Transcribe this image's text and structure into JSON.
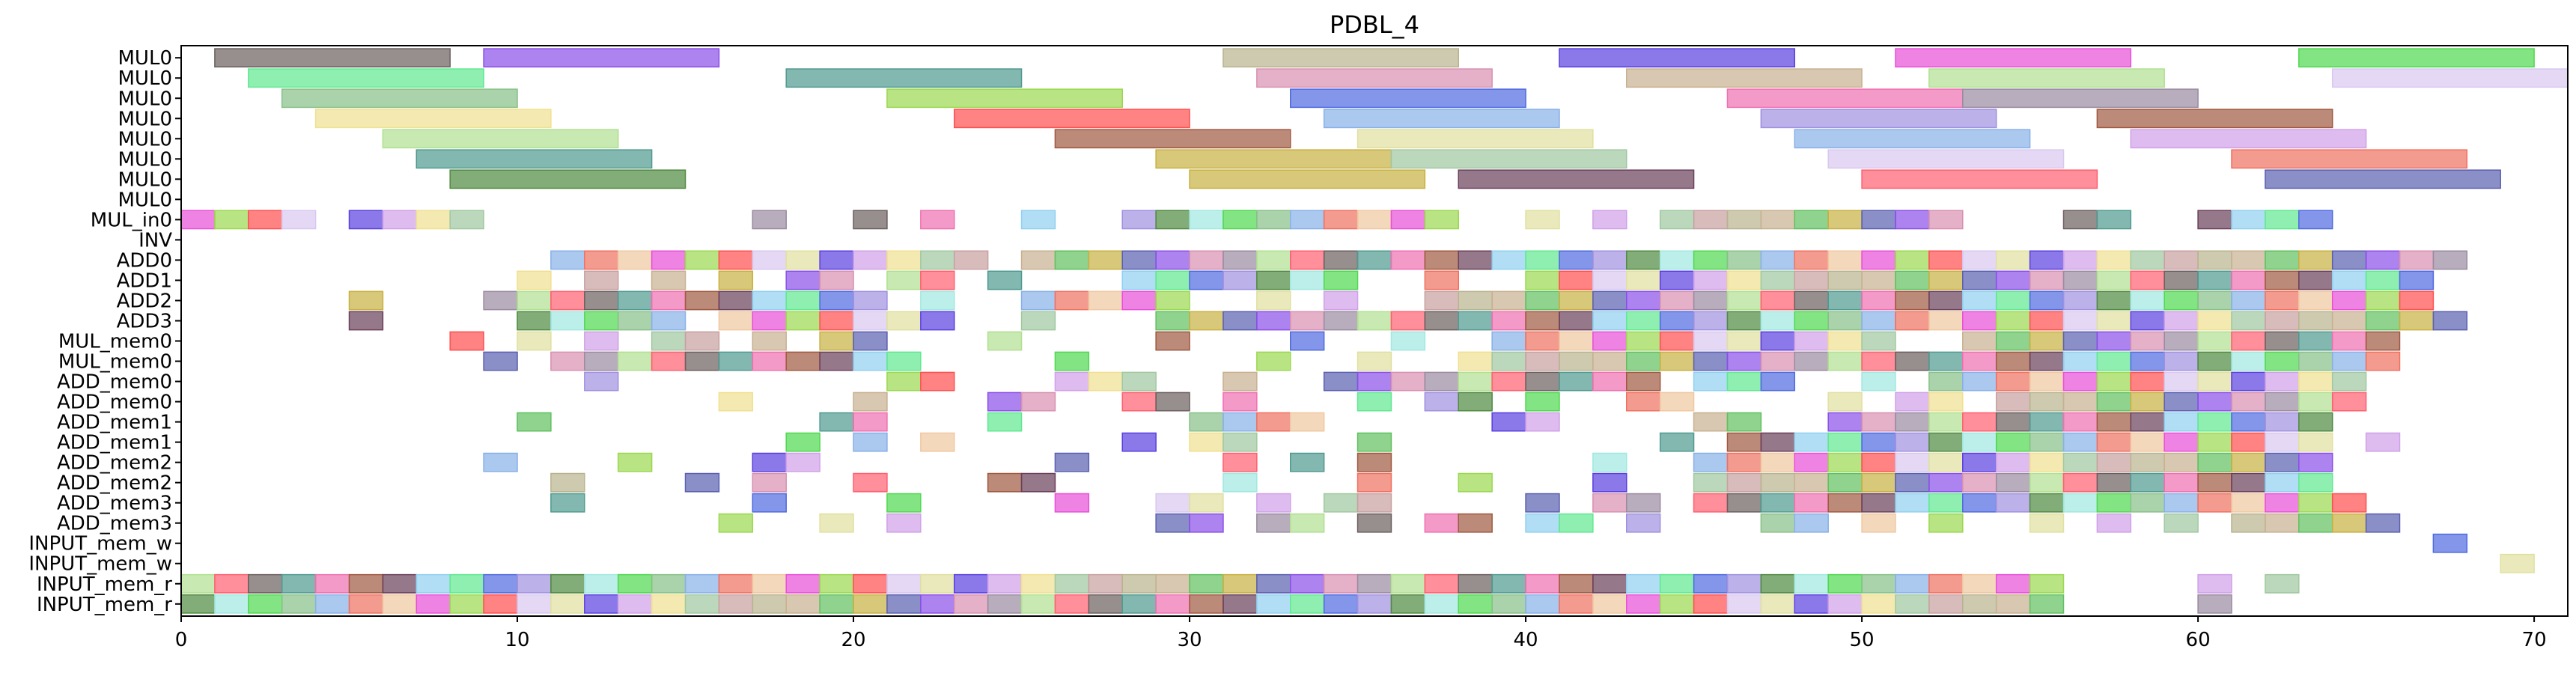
{
  "chart_data": {
    "type": "gantt",
    "title": "PDBL_4",
    "xlabel": "",
    "ylabel": "",
    "xlim": [
      0,
      71
    ],
    "x_ticks": [
      0,
      10,
      20,
      30,
      40,
      50,
      60,
      70
    ],
    "grid": false,
    "legend": "none",
    "rows": [
      "MUL0",
      "MUL0",
      "MUL0",
      "MUL0",
      "MUL0",
      "MUL0",
      "MUL0",
      "MUL0",
      "MUL_in0",
      "INV",
      "ADD0",
      "ADD1",
      "ADD2",
      "ADD3",
      "MUL_mem0",
      "MUL_mem0",
      "ADD_mem0",
      "ADD_mem0",
      "ADD_mem1",
      "ADD_mem1",
      "ADD_mem2",
      "ADD_mem2",
      "ADD_mem3",
      "ADD_mem3",
      "INPUT_mem_w",
      "INPUT_mem_w",
      "INPUT_mem_r",
      "INPUT_mem_r"
    ],
    "palette": [
      "#6b5e5e",
      "#8a4fe8",
      "#b8b38e",
      "#5a3fe0",
      "#e84fd8",
      "#4fd84f",
      "#5fe890",
      "#4f9a90",
      "#d890b0",
      "#c8b090",
      "#d0a0e8",
      "#9ad84f",
      "#88c088",
      "#4f6ae0",
      "#f06fb0",
      "#9a8aa0",
      "#5fc05f",
      "#f0e090",
      "#ff4f4f",
      "#88b0e8",
      "#a090e0",
      "#a0583f",
      "#b0e090",
      "#c8b040",
      "#a0c8a0",
      "#d8c8f0",
      "#f07060",
      "#4f8a3f",
      "#6a3f5a",
      "#ff5f6f",
      "#5a5fb0",
      "#c8a0a0",
      "#e0e0a0",
      "#f0c8a0",
      "#a0e8e0",
      "#90d0f0"
    ],
    "bars": [
      {
        "row": 0,
        "start": 1,
        "end": 8,
        "c": 0
      },
      {
        "row": 0,
        "start": 9,
        "end": 16,
        "c": 1
      },
      {
        "row": 0,
        "start": 31,
        "end": 38,
        "c": 2
      },
      {
        "row": 0,
        "start": 41,
        "end": 48,
        "c": 3
      },
      {
        "row": 0,
        "start": 51,
        "end": 58,
        "c": 4
      },
      {
        "row": 0,
        "start": 63,
        "end": 70,
        "c": 5
      },
      {
        "row": 1,
        "start": 2,
        "end": 9,
        "c": 6
      },
      {
        "row": 1,
        "start": 18,
        "end": 25,
        "c": 7
      },
      {
        "row": 1,
        "start": 32,
        "end": 39,
        "c": 8
      },
      {
        "row": 1,
        "start": 43,
        "end": 50,
        "c": 9
      },
      {
        "row": 1,
        "start": 52,
        "end": 59,
        "c": 22
      },
      {
        "row": 1,
        "start": 64,
        "end": 71,
        "c": 25
      },
      {
        "row": 2,
        "start": 3,
        "end": 10,
        "c": 12
      },
      {
        "row": 2,
        "start": 21,
        "end": 28,
        "c": 11
      },
      {
        "row": 2,
        "start": 33,
        "end": 40,
        "c": 13
      },
      {
        "row": 2,
        "start": 46,
        "end": 53,
        "c": 14
      },
      {
        "row": 2,
        "start": 53,
        "end": 60,
        "c": 15
      },
      {
        "row": 3,
        "start": 4,
        "end": 11,
        "c": 17
      },
      {
        "row": 3,
        "start": 23,
        "end": 30,
        "c": 18
      },
      {
        "row": 3,
        "start": 34,
        "end": 41,
        "c": 19
      },
      {
        "row": 3,
        "start": 47,
        "end": 54,
        "c": 20
      },
      {
        "row": 3,
        "start": 57,
        "end": 64,
        "c": 21
      },
      {
        "row": 4,
        "start": 6,
        "end": 13,
        "c": 22
      },
      {
        "row": 4,
        "start": 26,
        "end": 33,
        "c": 21
      },
      {
        "row": 4,
        "start": 35,
        "end": 42,
        "c": 32
      },
      {
        "row": 4,
        "start": 48,
        "end": 55,
        "c": 19
      },
      {
        "row": 4,
        "start": 58,
        "end": 65,
        "c": 10
      },
      {
        "row": 5,
        "start": 7,
        "end": 14,
        "c": 7
      },
      {
        "row": 5,
        "start": 29,
        "end": 36,
        "c": 23
      },
      {
        "row": 5,
        "start": 36,
        "end": 43,
        "c": 24
      },
      {
        "row": 5,
        "start": 49,
        "end": 56,
        "c": 25
      },
      {
        "row": 5,
        "start": 61,
        "end": 68,
        "c": 26
      },
      {
        "row": 6,
        "start": 8,
        "end": 15,
        "c": 27
      },
      {
        "row": 6,
        "start": 30,
        "end": 37,
        "c": 23
      },
      {
        "row": 6,
        "start": 38,
        "end": 45,
        "c": 28
      },
      {
        "row": 6,
        "start": 50,
        "end": 57,
        "c": 29
      },
      {
        "row": 6,
        "start": 62,
        "end": 69,
        "c": 30
      }
    ],
    "cells": {
      "8": [
        0,
        1,
        2,
        3,
        5,
        6,
        7,
        8,
        17,
        20,
        22,
        25,
        28,
        29,
        30,
        31,
        32,
        33,
        34,
        35,
        36,
        37,
        40,
        42,
        44,
        45,
        46,
        47,
        48,
        49,
        50,
        51,
        52,
        56,
        57,
        60,
        61,
        62,
        63
      ],
      "10": [
        11,
        12,
        13,
        14,
        15,
        16,
        17,
        18,
        19,
        20,
        21,
        22,
        23,
        25,
        26,
        27,
        28,
        29,
        30,
        31,
        32,
        33,
        34,
        35,
        36,
        37,
        38,
        39,
        40,
        41,
        42,
        43,
        44,
        45,
        46,
        47,
        48,
        49,
        50,
        51,
        52,
        53,
        54,
        55,
        56,
        57,
        58,
        59,
        60,
        61,
        62,
        63,
        64,
        65,
        66,
        67
      ],
      "11": [
        10,
        12,
        14,
        16,
        18,
        19,
        21,
        22,
        24,
        28,
        29,
        30,
        31,
        32,
        33,
        34,
        37,
        40,
        41,
        42,
        43,
        44,
        45,
        46,
        47,
        48,
        49,
        50,
        51,
        52,
        53,
        54,
        55,
        56,
        57,
        58,
        59,
        60,
        61,
        62,
        63,
        64,
        65,
        66
      ],
      "12": [
        5,
        9,
        10,
        11,
        12,
        13,
        14,
        15,
        16,
        17,
        18,
        19,
        20,
        22,
        25,
        26,
        27,
        28,
        29,
        32,
        34,
        37,
        38,
        39,
        40,
        41,
        42,
        43,
        44,
        45,
        46,
        47,
        48,
        49,
        50,
        51,
        52,
        53,
        54,
        55,
        56,
        57,
        58,
        59,
        60,
        61,
        62,
        63,
        64,
        65,
        66
      ],
      "13": [
        5,
        10,
        11,
        12,
        13,
        14,
        16,
        17,
        18,
        19,
        20,
        21,
        22,
        25,
        29,
        30,
        31,
        32,
        33,
        34,
        35,
        36,
        37,
        38,
        39,
        40,
        41,
        42,
        43,
        44,
        45,
        46,
        47,
        48,
        49,
        50,
        51,
        52,
        53,
        54,
        55,
        56,
        57,
        58,
        59,
        60,
        61,
        62,
        63,
        64,
        65,
        66,
        67
      ],
      "14": [
        8,
        10,
        12,
        14,
        15,
        17,
        19,
        20,
        24,
        29,
        33,
        36,
        39,
        40,
        41,
        42,
        43,
        44,
        45,
        46,
        47,
        48,
        49,
        50,
        53,
        54,
        55,
        56,
        57,
        58,
        59,
        60,
        61,
        62,
        63,
        64,
        65
      ],
      "15": [
        9,
        11,
        12,
        13,
        14,
        15,
        16,
        17,
        18,
        19,
        20,
        21,
        26,
        32,
        35,
        38,
        39,
        40,
        41,
        42,
        43,
        44,
        45,
        46,
        47,
        48,
        49,
        50,
        51,
        52,
        53,
        54,
        55,
        56,
        57,
        58,
        59,
        60,
        61,
        62,
        63,
        64,
        65
      ],
      "16": [
        12,
        21,
        22,
        26,
        27,
        28,
        31,
        34,
        35,
        36,
        37,
        38,
        39,
        40,
        41,
        42,
        43,
        45,
        46,
        47,
        50,
        52,
        53,
        54,
        55,
        56,
        57,
        58,
        59,
        60,
        61,
        62,
        63,
        64
      ],
      "17": [
        16,
        20,
        24,
        25,
        28,
        29,
        31,
        35,
        37,
        38,
        40,
        43,
        44,
        49,
        51,
        52,
        54,
        55,
        56,
        57,
        58,
        59,
        60,
        61,
        62,
        63,
        64
      ],
      "18": [
        10,
        19,
        20,
        24,
        30,
        31,
        32,
        33,
        39,
        40,
        45,
        46,
        49,
        50,
        51,
        52,
        53,
        54,
        55,
        56,
        57,
        58,
        59,
        60,
        61,
        62,
        63
      ],
      "19": [
        18,
        20,
        22,
        28,
        30,
        31,
        35,
        44,
        46,
        47,
        48,
        49,
        50,
        51,
        52,
        53,
        54,
        55,
        56,
        57,
        58,
        59,
        60,
        61,
        62,
        63,
        65
      ],
      "20": [
        9,
        13,
        17,
        18,
        26,
        31,
        33,
        35,
        42,
        45,
        46,
        47,
        48,
        49,
        50,
        51,
        52,
        53,
        54,
        55,
        56,
        57,
        58,
        59,
        60,
        61,
        62,
        63
      ],
      "21": [
        11,
        15,
        17,
        20,
        24,
        25,
        31,
        35,
        38,
        42,
        45,
        46,
        47,
        48,
        49,
        50,
        51,
        52,
        53,
        54,
        55,
        56,
        57,
        58,
        59,
        60,
        61,
        62,
        63
      ],
      "22": [
        11,
        17,
        21,
        26,
        29,
        30,
        32,
        34,
        35,
        40,
        42,
        43,
        45,
        46,
        47,
        48,
        49,
        50,
        51,
        52,
        53,
        54,
        55,
        56,
        57,
        58,
        59,
        60,
        61,
        62,
        63,
        64
      ],
      "23": [
        16,
        19,
        21,
        29,
        30,
        32,
        33,
        35,
        37,
        38,
        40,
        41,
        43,
        47,
        48,
        50,
        52,
        55,
        57,
        59,
        61,
        62,
        63,
        64,
        65
      ],
      "24": [
        67
      ],
      "25": [
        69
      ],
      "26": [
        0,
        1,
        2,
        3,
        4,
        5,
        6,
        7,
        8,
        9,
        10,
        11,
        12,
        13,
        14,
        15,
        16,
        17,
        18,
        19,
        20,
        21,
        22,
        23,
        24,
        25,
        26,
        27,
        28,
        29,
        30,
        31,
        32,
        33,
        34,
        35,
        36,
        37,
        38,
        39,
        40,
        41,
        42,
        43,
        44,
        45,
        46,
        47,
        48,
        49,
        50,
        51,
        52,
        53,
        54,
        55,
        60,
        62
      ],
      "27": [
        0,
        1,
        2,
        3,
        4,
        5,
        6,
        7,
        8,
        9,
        10,
        11,
        12,
        13,
        14,
        15,
        16,
        17,
        18,
        19,
        20,
        21,
        22,
        23,
        24,
        25,
        26,
        27,
        28,
        29,
        30,
        31,
        32,
        33,
        34,
        35,
        36,
        37,
        38,
        39,
        40,
        41,
        42,
        43,
        44,
        45,
        46,
        47,
        48,
        49,
        50,
        51,
        52,
        53,
        54,
        55,
        60
      ]
    }
  }
}
